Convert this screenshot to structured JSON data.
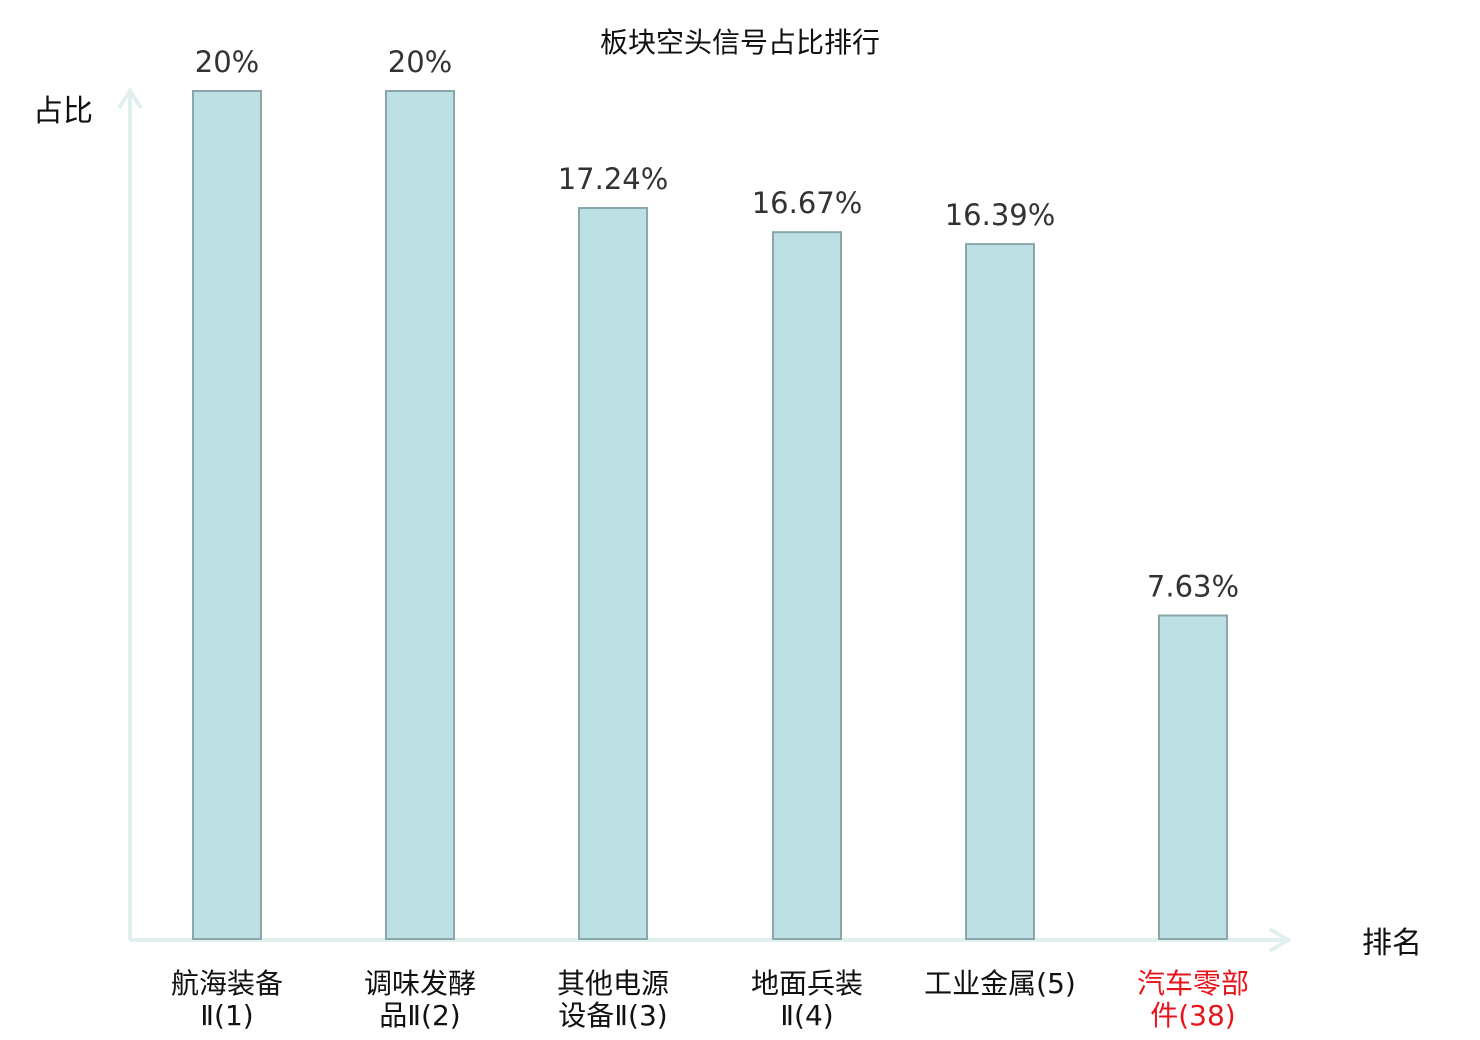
{
  "chart_data": {
    "type": "bar",
    "title": "板块空头信号占比排行",
    "ylabel": "占比",
    "xlabel": "排名",
    "ylim": [
      0,
      20
    ],
    "grid": false,
    "categories": [
      {
        "lines": [
          "航海装备",
          "Ⅱ(1)"
        ],
        "highlight": false
      },
      {
        "lines": [
          "调味发酵",
          "品Ⅱ(2)"
        ],
        "highlight": false
      },
      {
        "lines": [
          "其他电源",
          "设备Ⅱ(3)"
        ],
        "highlight": false
      },
      {
        "lines": [
          "地面兵装",
          "Ⅱ(4)"
        ],
        "highlight": false
      },
      {
        "lines": [
          "工业金属(5)"
        ],
        "highlight": false
      },
      {
        "lines": [
          "汽车零部",
          "件(38)"
        ],
        "highlight": true
      }
    ],
    "values": [
      20,
      20,
      17.24,
      16.67,
      16.39,
      7.63
    ],
    "value_labels": [
      "20%",
      "20%",
      "17.24%",
      "16.67%",
      "16.39%",
      "7.63%"
    ],
    "colors": {
      "bar_fill": "#bce0e3",
      "bar_stroke": "#8aa7aa",
      "axis": "#dff0ee",
      "label_normal": "#111111",
      "label_highlight": "#e8141c"
    }
  }
}
